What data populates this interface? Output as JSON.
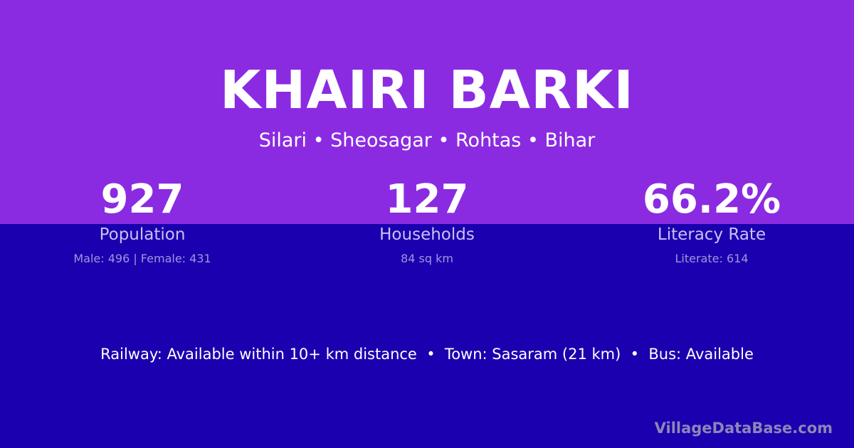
{
  "colors": {
    "top_background": "#8a2be2",
    "bottom_background": "#1a00ae"
  },
  "village": {
    "name": "KHAIRI BARKI",
    "location": "Silari • Sheosagar • Rohtas • Bihar"
  },
  "stats": [
    {
      "value": "927",
      "label": "Population",
      "detail": "Male: 496 | Female: 431"
    },
    {
      "value": "127",
      "label": "Households",
      "detail": "84 sq km"
    },
    {
      "value": "66.2%",
      "label": "Literacy Rate",
      "detail": "Literate: 614"
    }
  ],
  "facts": "Railway: Available within 10+ km distance  •  Town: Sasaram (21 km)  •  Bus: Available",
  "brand": "VillageDataBase.com"
}
